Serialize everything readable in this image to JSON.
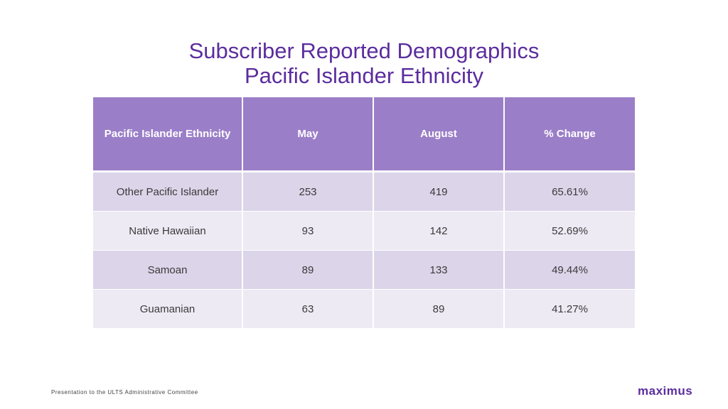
{
  "title": {
    "line1": "Subscriber Reported Demographics",
    "line2": "Pacific Islander Ethnicity"
  },
  "table": {
    "headers": [
      "Pacific Islander Ethnicity",
      "May",
      "August",
      "% Change"
    ],
    "rows": [
      [
        "Other Pacific Islander",
        "253",
        "419",
        "65.61%"
      ],
      [
        "Native Hawaiian",
        "93",
        "142",
        "52.69%"
      ],
      [
        "Samoan",
        "89",
        "133",
        "49.44%"
      ],
      [
        "Guamanian",
        "63",
        "89",
        "41.27%"
      ]
    ]
  },
  "footer": {
    "text": "Presentation to the ULTS Administrative Committee"
  },
  "logo": {
    "text": "maximus",
    "color": "#5b2d9e"
  },
  "colors": {
    "title": "#5b2d9e",
    "header_bg": "#9b7ec8",
    "row_dark": "#dcd4e9",
    "row_light": "#eeeaf4"
  }
}
